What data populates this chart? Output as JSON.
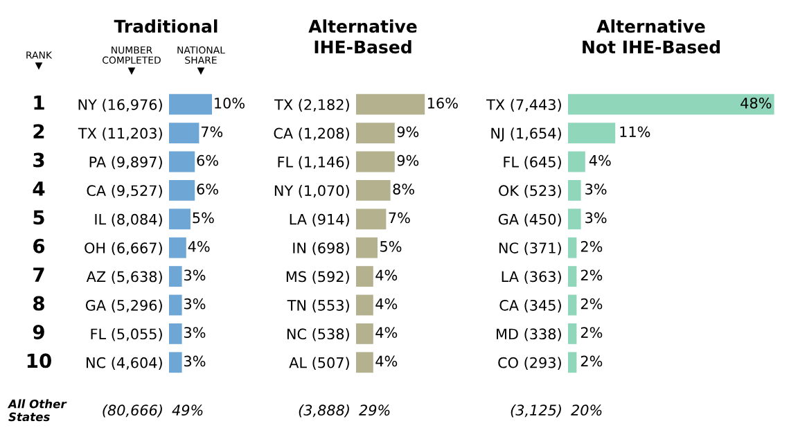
{
  "chart_data": [
    {
      "type": "bar",
      "orientation": "horizontal",
      "title": "Traditional",
      "color": "#6ea6d5",
      "categories": [
        "NY (16,976)",
        "TX (11,203)",
        "PA (9,897)",
        "CA (9,527)",
        "IL (8,084)",
        "OH (6,667)",
        "AZ (5,638)",
        "GA (5,296)",
        "FL (5,055)",
        "NC (4,604)"
      ],
      "values": [
        10,
        7,
        6,
        6,
        5,
        4,
        3,
        3,
        3,
        3
      ],
      "value_labels": [
        "10%",
        "7%",
        "6%",
        "6%",
        "5%",
        "4%",
        "3%",
        "3%",
        "3%",
        "3%"
      ],
      "annotations": [
        "RANK\n▼",
        "1",
        "2",
        "3",
        "4",
        "5",
        "6",
        "7",
        "8",
        "9",
        "10",
        "All Other\nStates",
        "NUMBER\nCOMPLETED\n▼",
        "NATIONAL\nSHARE\n▼",
        "(80,666)",
        "49%"
      ]
    },
    {
      "type": "bar",
      "orientation": "horizontal",
      "title": "Alternative\nIHE-Based",
      "color": "#b4b18e",
      "categories": [
        "TX (2,182)",
        "CA (1,208)",
        "FL (1,146)",
        "NY (1,070)",
        "LA (914)",
        "IN (698)",
        "MS (592)",
        "TN (553)",
        "NC (538)",
        "AL (507)"
      ],
      "values": [
        16,
        9,
        9,
        8,
        7,
        5,
        4,
        4,
        4,
        4
      ],
      "value_labels": [
        "16%",
        "9%",
        "9%",
        "8%",
        "7%",
        "5%",
        "4%",
        "4%",
        "4%",
        "4%"
      ],
      "annotations": [
        "(3,888)",
        "29%"
      ]
    },
    {
      "type": "bar",
      "orientation": "horizontal",
      "title": "Alternative\nNot IHE-Based",
      "color": "#8fd6bb",
      "categories": [
        "TX (7,443)",
        "NJ (1,654)",
        "FL (645)",
        "OK (523)",
        "GA (450)",
        "NC (371)",
        "LA (363)",
        "CA (345)",
        "MD (338)",
        "CO (293)"
      ],
      "values": [
        48,
        11,
        4,
        3,
        3,
        2,
        2,
        2,
        2,
        2
      ],
      "value_labels": [
        "48%",
        "11%",
        "4%",
        "3%",
        "3%",
        "2%",
        "2%",
        "2%",
        "2%",
        "2%"
      ],
      "annotations": [
        "(3,125)",
        "20%"
      ]
    }
  ]
}
